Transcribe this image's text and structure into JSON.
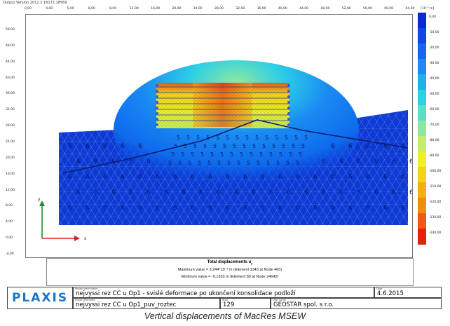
{
  "window": {
    "title": "Output Version 2012.2.16172.18569"
  },
  "ruler": {
    "top_ticks": [
      "0,00",
      "4,00",
      "5,00",
      "8,00",
      "8,00",
      "12,00",
      "16,00",
      "20,00",
      "24,00",
      "28,00",
      "32,00",
      "36,00",
      "40,00",
      "44,00",
      "48,00",
      "52,00",
      "56,00",
      "60,00",
      "64,00"
    ],
    "left_ticks": [
      "58,00",
      "48,00",
      "44,00",
      "40,00",
      "36,00",
      "32,00",
      "28,00",
      "24,00",
      "20,00",
      "16,00",
      "12,00",
      "8,00",
      "4,00",
      "0,00",
      "-4,00"
    ]
  },
  "legend": {
    "unit": "[10⁻³ m]",
    "labels": [
      "0,00",
      "-10,00",
      "-20,00",
      "-30,00",
      "-40,00",
      "-50,00",
      "-60,00",
      "-70,00",
      "-80,00",
      "-90,00",
      "-100,00",
      "-110,00",
      "-120,00",
      "-130,00",
      "-140,00"
    ],
    "colors": [
      "#0a2bd2",
      "#0b49e0",
      "#0f6aec",
      "#1a8cf2",
      "#23aef0",
      "#2dd0e6",
      "#59e0c8",
      "#8ce89e",
      "#c4ee62",
      "#eeee2a",
      "#f6d21c",
      "#f7ae16",
      "#f58a12",
      "#f05a0e",
      "#e5200b"
    ]
  },
  "plot": {
    "axis_y_label": "y",
    "axis_x_label": "x",
    "mesh_region_label": "5",
    "deep_region_label": "6",
    "background": "#0c3ad2"
  },
  "info": {
    "title": "Total displacements u",
    "title_sub": "y",
    "max_line": "Maximum value = 3,244*10⁻³ m (Element 1343 at Node 465)",
    "min_line": "Minimum value = -0,1303 m (Element 80 at Node 24642)"
  },
  "titleblock": {
    "logo": "PLAXIS",
    "project_description_label": "Project description",
    "project_description": "nejvyssi rez CC u Op1 - svislé deformace po ukončení konsolidace podloží",
    "project_filename_label": "Project filename",
    "project_filename": "nejvyssi rez CC u Op1_puv_roztec",
    "date_label": "Date",
    "date": "4.6.2015",
    "step_label": "Step",
    "step": "129",
    "user_label": "User name",
    "user": "GEOSTAR spol. s r.o."
  },
  "caption": "Vertical displacements of MacRes MSEW"
}
